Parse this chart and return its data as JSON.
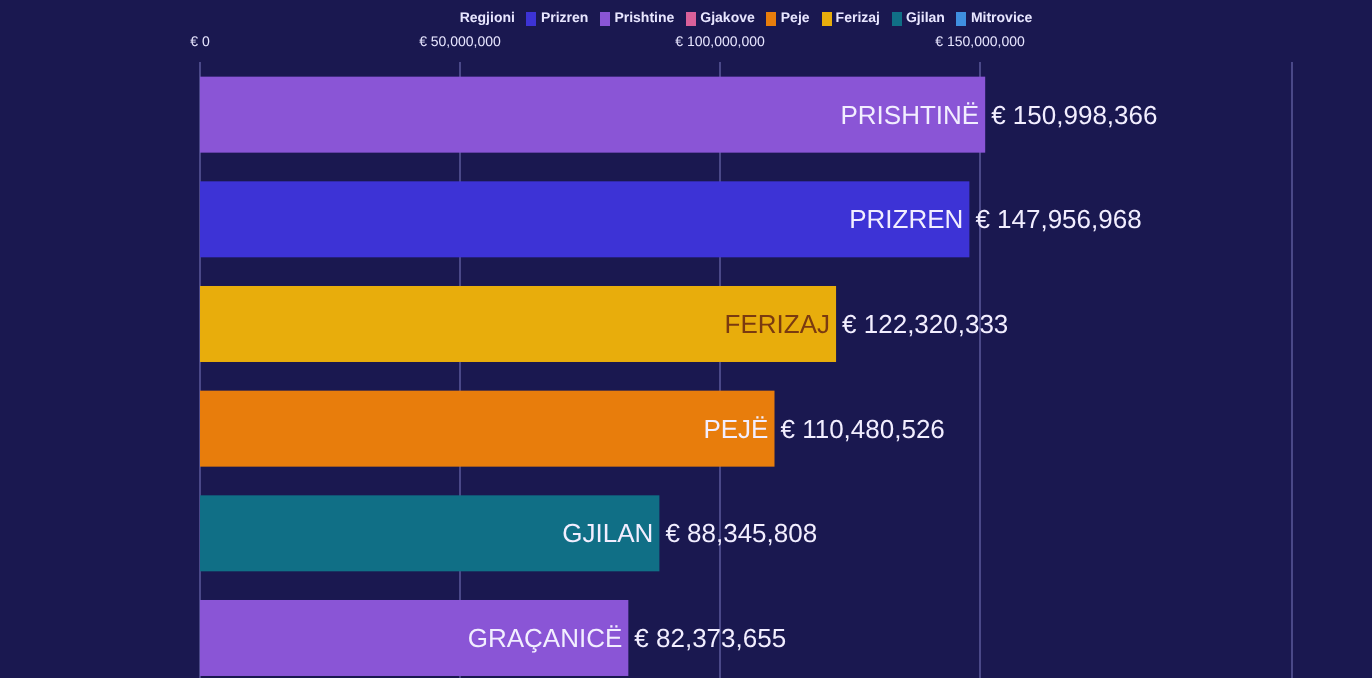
{
  "chart_data": {
    "type": "bar",
    "orientation": "horizontal",
    "stacked": true,
    "legend_title": "Regjioni",
    "legend": "top",
    "grid": "x",
    "tick_labels": "x",
    "categories": [
      "PRISHTINË",
      "PRIZREN",
      "FERIZAJ",
      "PEJË",
      "GJILAN",
      "GRAÇANICË"
    ],
    "xlim": [
      0,
      210000000
    ],
    "xticks": [
      {
        "value": 0,
        "label": "€ 0"
      },
      {
        "value": 50000000,
        "label": "€ 50,000,000"
      },
      {
        "value": 100000000,
        "label": "€ 100,000,000"
      },
      {
        "value": 150000000,
        "label": "€ 150,000,000"
      }
    ],
    "series": [
      {
        "name": "Prizren",
        "color": "#3d33d6",
        "values": [
          null,
          147956968,
          null,
          null,
          null,
          null
        ],
        "value_labels": [
          null,
          "€ 147,956,968",
          null,
          null,
          null,
          null
        ]
      },
      {
        "name": "Prishtine",
        "color": "#8a55d6",
        "values": [
          150998366,
          null,
          null,
          null,
          null,
          82373655
        ],
        "value_labels": [
          "€ 150,998,366",
          null,
          null,
          null,
          null,
          "€ 82,373,655"
        ]
      },
      {
        "name": "Gjakove",
        "color": "#d9609a",
        "values": [
          null,
          null,
          null,
          null,
          null,
          null
        ]
      },
      {
        "name": "Peje",
        "color": "#e87d0c",
        "values": [
          null,
          null,
          null,
          110480526,
          null,
          null
        ],
        "value_labels": [
          null,
          null,
          null,
          "€ 110,480,526",
          null,
          null
        ]
      },
      {
        "name": "Ferizaj",
        "color": "#e8ad0c",
        "values": [
          null,
          null,
          122320333,
          null,
          null,
          null
        ],
        "value_labels": [
          null,
          null,
          "€ 122,320,333",
          null,
          null,
          null
        ]
      },
      {
        "name": "Gjilan",
        "color": "#106f86",
        "values": [
          null,
          null,
          null,
          null,
          88345808,
          null
        ],
        "value_labels": [
          null,
          null,
          null,
          null,
          "€ 88,345,808",
          null
        ]
      },
      {
        "name": "Mitrovice",
        "color": "#3f8fe0",
        "values": [
          null,
          null,
          null,
          null,
          null,
          null
        ]
      }
    ]
  }
}
